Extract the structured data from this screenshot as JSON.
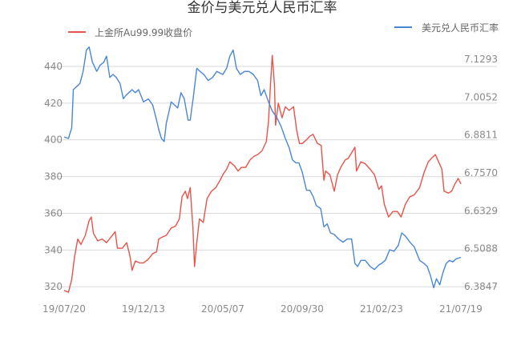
{
  "chart_data": {
    "type": "line",
    "title": "金价与美元兑人民币汇率",
    "x_tick_labels": [
      "19/07/20",
      "19/12/13",
      "20/05/07",
      "20/09/30",
      "21/02/23",
      "21/07/19"
    ],
    "x_range": [
      "2019-07-20",
      "2021-07-19"
    ],
    "left_axis": {
      "ticks": [
        320,
        340,
        360,
        380,
        400,
        420,
        440
      ],
      "range": [
        314,
        450
      ]
    },
    "right_axis": {
      "ticks": [
        6.3847,
        6.5088,
        6.6329,
        6.757,
        6.8811,
        7.0052,
        7.1293
      ],
      "range": [
        6.3474,
        7.1666
      ]
    },
    "grid": true,
    "series": [
      {
        "name": "上金所Au99.99收盘价",
        "axis": "left",
        "color": "#e8534a",
        "legend_position": "top-left",
        "points": [
          [
            "2019-07-20",
            318
          ],
          [
            "2019-07-28",
            317
          ],
          [
            "2019-08-03",
            324
          ],
          [
            "2019-08-08",
            336
          ],
          [
            "2019-08-14",
            346
          ],
          [
            "2019-08-20",
            343
          ],
          [
            "2019-08-28",
            348
          ],
          [
            "2019-09-04",
            356
          ],
          [
            "2019-09-08",
            358
          ],
          [
            "2019-09-12",
            349
          ],
          [
            "2019-09-20",
            345
          ],
          [
            "2019-09-28",
            346
          ],
          [
            "2019-10-06",
            344
          ],
          [
            "2019-10-14",
            347
          ],
          [
            "2019-10-22",
            350
          ],
          [
            "2019-10-26",
            341
          ],
          [
            "2019-11-04",
            341
          ],
          [
            "2019-11-12",
            344
          ],
          [
            "2019-11-18",
            337
          ],
          [
            "2019-11-22",
            329
          ],
          [
            "2019-11-28",
            334
          ],
          [
            "2019-12-06",
            333
          ],
          [
            "2019-12-13",
            333
          ],
          [
            "2019-12-22",
            335
          ],
          [
            "2019-12-30",
            338
          ],
          [
            "2020-01-06",
            339
          ],
          [
            "2020-01-10",
            346
          ],
          [
            "2020-01-16",
            347
          ],
          [
            "2020-01-24",
            348
          ],
          [
            "2020-02-02",
            352
          ],
          [
            "2020-02-10",
            353
          ],
          [
            "2020-02-17",
            357
          ],
          [
            "2020-02-22",
            369
          ],
          [
            "2020-02-28",
            372
          ],
          [
            "2020-03-03",
            368
          ],
          [
            "2020-03-08",
            374
          ],
          [
            "2020-03-13",
            352
          ],
          [
            "2020-03-16",
            331
          ],
          [
            "2020-03-20",
            344
          ],
          [
            "2020-03-25",
            357
          ],
          [
            "2020-04-01",
            355
          ],
          [
            "2020-04-08",
            368
          ],
          [
            "2020-04-16",
            372
          ],
          [
            "2020-04-24",
            374
          ],
          [
            "2020-05-02",
            378
          ],
          [
            "2020-05-07",
            381
          ],
          [
            "2020-05-14",
            384
          ],
          [
            "2020-05-20",
            388
          ],
          [
            "2020-05-28",
            386
          ],
          [
            "2020-06-04",
            383
          ],
          [
            "2020-06-10",
            385
          ],
          [
            "2020-06-18",
            385
          ],
          [
            "2020-06-26",
            389
          ],
          [
            "2020-07-03",
            391
          ],
          [
            "2020-07-10",
            392
          ],
          [
            "2020-07-18",
            394
          ],
          [
            "2020-07-26",
            399
          ],
          [
            "2020-07-30",
            410
          ],
          [
            "2020-08-03",
            432
          ],
          [
            "2020-08-06",
            446
          ],
          [
            "2020-08-10",
            430
          ],
          [
            "2020-08-12",
            408
          ],
          [
            "2020-08-17",
            420
          ],
          [
            "2020-08-24",
            412
          ],
          [
            "2020-08-30",
            418
          ],
          [
            "2020-09-06",
            416
          ],
          [
            "2020-09-14",
            418
          ],
          [
            "2020-09-20",
            405
          ],
          [
            "2020-09-25",
            398
          ],
          [
            "2020-09-30",
            398
          ],
          [
            "2020-10-08",
            400
          ],
          [
            "2020-10-14",
            402
          ],
          [
            "2020-10-20",
            403
          ],
          [
            "2020-10-28",
            398
          ],
          [
            "2020-11-04",
            397
          ],
          [
            "2020-11-09",
            378
          ],
          [
            "2020-11-12",
            383
          ],
          [
            "2020-11-20",
            381
          ],
          [
            "2020-11-28",
            372
          ],
          [
            "2020-12-04",
            381
          ],
          [
            "2020-12-10",
            385
          ],
          [
            "2020-12-18",
            389
          ],
          [
            "2020-12-24",
            390
          ],
          [
            "2021-01-05",
            396
          ],
          [
            "2021-01-08",
            383
          ],
          [
            "2021-01-16",
            388
          ],
          [
            "2021-01-24",
            387
          ],
          [
            "2021-02-02",
            384
          ],
          [
            "2021-02-10",
            381
          ],
          [
            "2021-02-18",
            373
          ],
          [
            "2021-02-23",
            375
          ],
          [
            "2021-02-28",
            365
          ],
          [
            "2021-03-08",
            358
          ],
          [
            "2021-03-16",
            361
          ],
          [
            "2021-03-24",
            361
          ],
          [
            "2021-03-31",
            358
          ],
          [
            "2021-04-08",
            365
          ],
          [
            "2021-04-16",
            369
          ],
          [
            "2021-04-24",
            370
          ],
          [
            "2021-05-04",
            374
          ],
          [
            "2021-05-12",
            382
          ],
          [
            "2021-05-20",
            388
          ],
          [
            "2021-05-26",
            390
          ],
          [
            "2021-06-02",
            392
          ],
          [
            "2021-06-08",
            388
          ],
          [
            "2021-06-14",
            384
          ],
          [
            "2021-06-18",
            372
          ],
          [
            "2021-06-26",
            371
          ],
          [
            "2021-07-02",
            372
          ],
          [
            "2021-07-08",
            376
          ],
          [
            "2021-07-14",
            379
          ],
          [
            "2021-07-19",
            376
          ]
        ]
      },
      {
        "name": "美元兑人民币汇率",
        "axis": "right",
        "color": "#4a86d8",
        "legend_position": "top-right",
        "points": [
          [
            "2019-07-20",
            6.875
          ],
          [
            "2019-07-28",
            6.87
          ],
          [
            "2019-08-03",
            6.905
          ],
          [
            "2019-08-06",
            7.03
          ],
          [
            "2019-08-12",
            7.04
          ],
          [
            "2019-08-18",
            7.05
          ],
          [
            "2019-08-24",
            7.09
          ],
          [
            "2019-08-30",
            7.16
          ],
          [
            "2019-09-04",
            7.17
          ],
          [
            "2019-09-10",
            7.12
          ],
          [
            "2019-09-18",
            7.09
          ],
          [
            "2019-09-24",
            7.11
          ],
          [
            "2019-10-01",
            7.12
          ],
          [
            "2019-10-06",
            7.14
          ],
          [
            "2019-10-12",
            7.07
          ],
          [
            "2019-10-18",
            7.08
          ],
          [
            "2019-10-24",
            7.07
          ],
          [
            "2019-10-31",
            7.05
          ],
          [
            "2019-11-06",
            7.0
          ],
          [
            "2019-11-10",
            7.01
          ],
          [
            "2019-11-16",
            7.02
          ],
          [
            "2019-11-22",
            7.03
          ],
          [
            "2019-11-28",
            7.02
          ],
          [
            "2019-12-04",
            7.03
          ],
          [
            "2019-12-13",
            6.99
          ],
          [
            "2019-12-22",
            7.0
          ],
          [
            "2019-12-30",
            6.98
          ],
          [
            "2020-01-06",
            6.93
          ],
          [
            "2020-01-10",
            6.9
          ],
          [
            "2020-01-15",
            6.87
          ],
          [
            "2020-01-20",
            6.86
          ],
          [
            "2020-01-24",
            6.92
          ],
          [
            "2020-02-02",
            6.99
          ],
          [
            "2020-02-08",
            6.98
          ],
          [
            "2020-02-14",
            6.97
          ],
          [
            "2020-02-20",
            7.02
          ],
          [
            "2020-02-26",
            7.0
          ],
          [
            "2020-03-04",
            6.93
          ],
          [
            "2020-03-08",
            6.93
          ],
          [
            "2020-03-14",
            7.01
          ],
          [
            "2020-03-20",
            7.1
          ],
          [
            "2020-03-26",
            7.09
          ],
          [
            "2020-04-02",
            7.08
          ],
          [
            "2020-04-10",
            7.06
          ],
          [
            "2020-04-18",
            7.07
          ],
          [
            "2020-04-26",
            7.09
          ],
          [
            "2020-05-07",
            7.08
          ],
          [
            "2020-05-14",
            7.1
          ],
          [
            "2020-05-20",
            7.14
          ],
          [
            "2020-05-26",
            7.16
          ],
          [
            "2020-06-01",
            7.1
          ],
          [
            "2020-06-08",
            7.08
          ],
          [
            "2020-06-16",
            7.09
          ],
          [
            "2020-06-24",
            7.09
          ],
          [
            "2020-07-02",
            7.08
          ],
          [
            "2020-07-10",
            7.06
          ],
          [
            "2020-07-16",
            7.01
          ],
          [
            "2020-07-22",
            7.03
          ],
          [
            "2020-07-30",
            6.99
          ],
          [
            "2020-08-06",
            6.96
          ],
          [
            "2020-08-14",
            6.94
          ],
          [
            "2020-08-22",
            6.91
          ],
          [
            "2020-08-30",
            6.87
          ],
          [
            "2020-09-06",
            6.84
          ],
          [
            "2020-09-12",
            6.8
          ],
          [
            "2020-09-18",
            6.79
          ],
          [
            "2020-09-24",
            6.79
          ],
          [
            "2020-09-30",
            6.76
          ],
          [
            "2020-10-08",
            6.7
          ],
          [
            "2020-10-14",
            6.7
          ],
          [
            "2020-10-20",
            6.68
          ],
          [
            "2020-10-26",
            6.65
          ],
          [
            "2020-11-03",
            6.64
          ],
          [
            "2020-11-09",
            6.58
          ],
          [
            "2020-11-15",
            6.59
          ],
          [
            "2020-11-21",
            6.56
          ],
          [
            "2020-11-28",
            6.555
          ],
          [
            "2020-12-06",
            6.54
          ],
          [
            "2020-12-14",
            6.53
          ],
          [
            "2020-12-22",
            6.54
          ],
          [
            "2020-12-30",
            6.54
          ],
          [
            "2021-01-05",
            6.46
          ],
          [
            "2021-01-10",
            6.45
          ],
          [
            "2021-01-16",
            6.47
          ],
          [
            "2021-01-24",
            6.47
          ],
          [
            "2021-02-02",
            6.45
          ],
          [
            "2021-02-10",
            6.44
          ],
          [
            "2021-02-18",
            6.455
          ],
          [
            "2021-02-23",
            6.46
          ],
          [
            "2021-03-02",
            6.47
          ],
          [
            "2021-03-10",
            6.505
          ],
          [
            "2021-03-18",
            6.5
          ],
          [
            "2021-03-26",
            6.52
          ],
          [
            "2021-04-01",
            6.56
          ],
          [
            "2021-04-08",
            6.55
          ],
          [
            "2021-04-16",
            6.53
          ],
          [
            "2021-04-24",
            6.515
          ],
          [
            "2021-05-04",
            6.47
          ],
          [
            "2021-05-12",
            6.46
          ],
          [
            "2021-05-18",
            6.45
          ],
          [
            "2021-05-24",
            6.42
          ],
          [
            "2021-05-30",
            6.38
          ],
          [
            "2021-06-04",
            6.41
          ],
          [
            "2021-06-10",
            6.39
          ],
          [
            "2021-06-16",
            6.43
          ],
          [
            "2021-06-22",
            6.46
          ],
          [
            "2021-06-28",
            6.47
          ],
          [
            "2021-07-04",
            6.465
          ],
          [
            "2021-07-10",
            6.475
          ],
          [
            "2021-07-19",
            6.48
          ]
        ]
      }
    ]
  }
}
